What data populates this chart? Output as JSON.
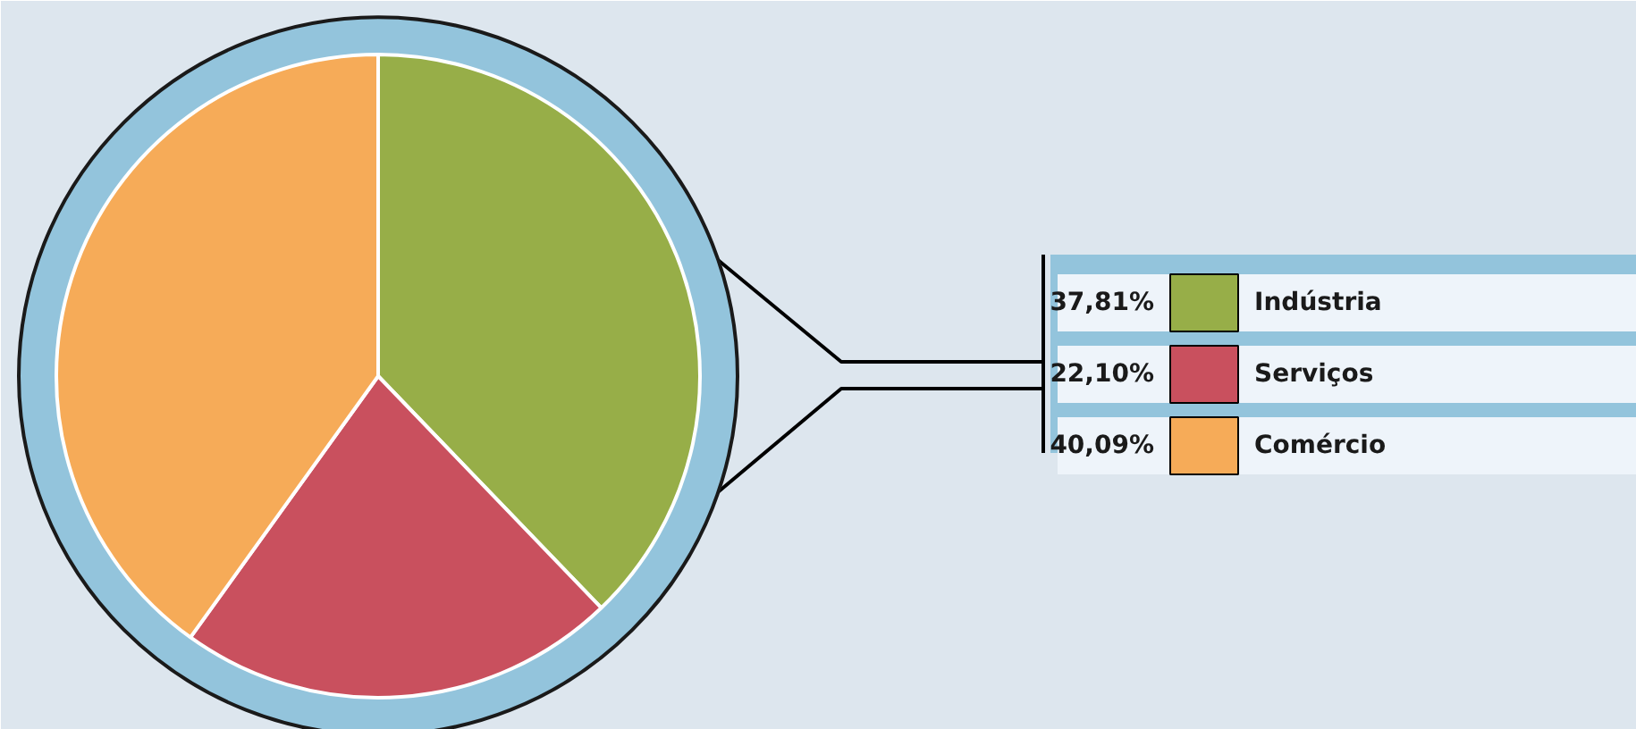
{
  "chart_data": {
    "type": "pie",
    "categories": [
      "Indústria",
      "Serviços",
      "Comércio"
    ],
    "values": [
      37.81,
      22.1,
      40.09
    ],
    "colors": [
      "#97ae48",
      "#c9505e",
      "#f6ab58"
    ],
    "value_labels": [
      "37,81%",
      "22,10%",
      "40,09%"
    ],
    "legend": "right"
  }
}
